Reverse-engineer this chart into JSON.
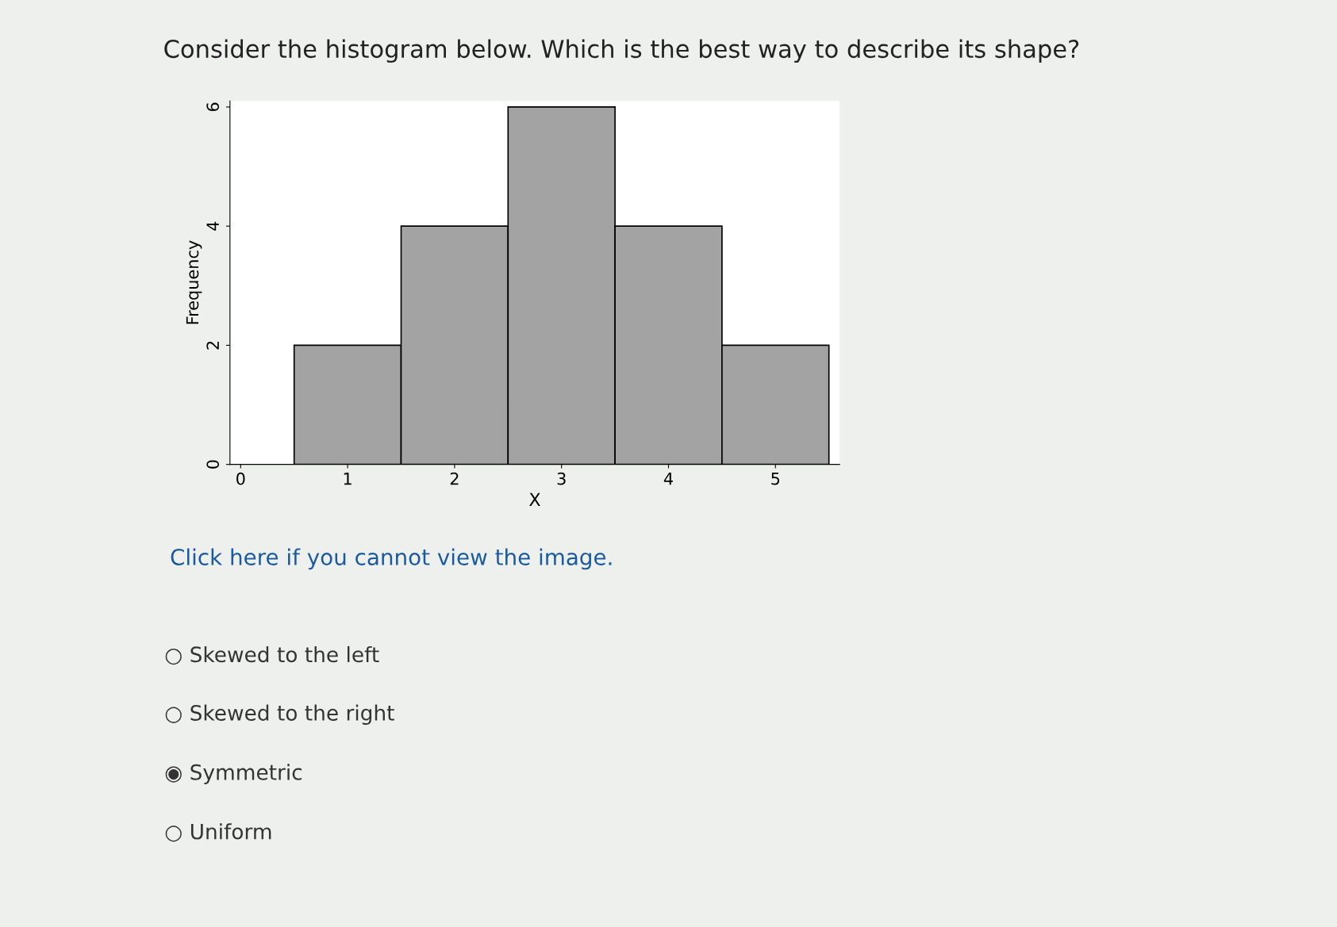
{
  "chart_data": {
    "type": "histogram",
    "title": "Consider the histogram below. Which is the best way to describe its shape?",
    "xlabel": "X",
    "ylabel": "Frequency",
    "bins": [
      0.5,
      1.5,
      2.5,
      3.5,
      4.5,
      5.5
    ],
    "values": [
      2,
      4,
      6,
      4,
      2
    ],
    "color": "#a3a3a3",
    "xlim": [
      -0.1,
      5.6
    ],
    "ylim": [
      0,
      6.1
    ],
    "xticks": [
      0,
      1,
      2,
      3,
      4,
      5
    ],
    "yticks": [
      0,
      2,
      4,
      6
    ],
    "grid": false,
    "annotations": [
      "Click here if you cannot view the image.",
      "○ Skewed to the left",
      "○ Skewed to the right",
      "◉ Symmetric",
      "○ Uniform"
    ]
  }
}
